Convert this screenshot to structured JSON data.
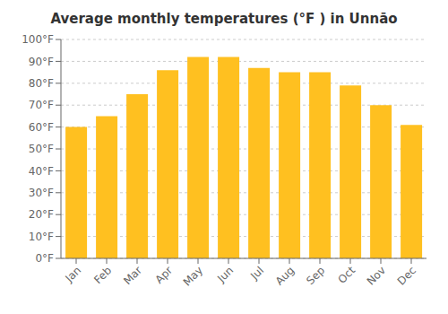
{
  "chart_data": {
    "type": "bar",
    "title": "Average monthly temperatures (°F ) in Unnāo",
    "categories": [
      "Jan",
      "Feb",
      "Mar",
      "Apr",
      "May",
      "Jun",
      "Jul",
      "Aug",
      "Sep",
      "Oct",
      "Nov",
      "Dec"
    ],
    "values": [
      60,
      65,
      75,
      86,
      92,
      92,
      87,
      85,
      85,
      79,
      70,
      61
    ],
    "color": "#FFC020",
    "ylim": [
      0,
      100
    ],
    "yticks": [
      {
        "value": 0,
        "label": "0°F"
      },
      {
        "value": 10,
        "label": "10°F"
      },
      {
        "value": 20,
        "label": "20°F"
      },
      {
        "value": 30,
        "label": "30°F"
      },
      {
        "value": 40,
        "label": "40°F"
      },
      {
        "value": 50,
        "label": "50°F"
      },
      {
        "value": 60,
        "label": "60°F"
      },
      {
        "value": 70,
        "label": "70°F"
      },
      {
        "value": 80,
        "label": "80°F"
      },
      {
        "value": 90,
        "label": "90°F"
      },
      {
        "value": 100,
        "label": "100°F"
      }
    ],
    "grid": true
  }
}
